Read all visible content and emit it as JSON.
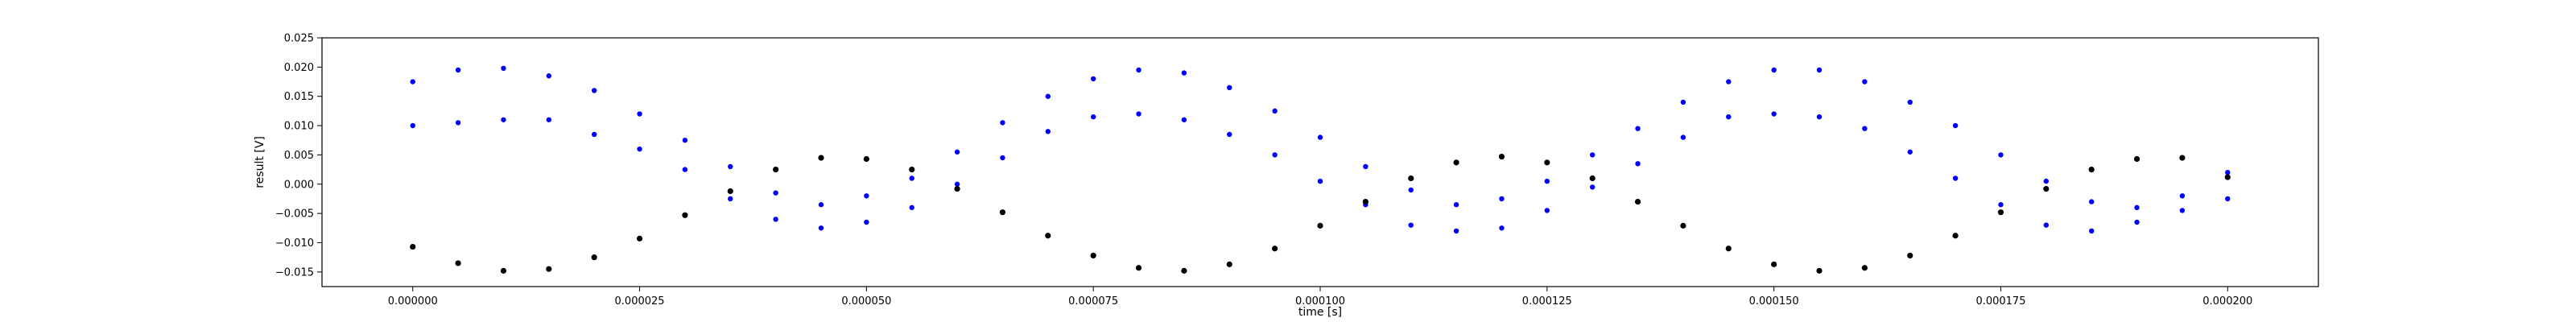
{
  "chart_data": {
    "type": "scatter",
    "title": "",
    "xlabel": "time [s]",
    "ylabel": "result [V]",
    "xlim": [
      -1e-05,
      0.00021
    ],
    "ylim": [
      -0.0175,
      0.025
    ],
    "grid": false,
    "legend": "none",
    "x_ticks": [
      0.0,
      2.5e-05,
      5e-05,
      7.5e-05,
      0.0001,
      0.000125,
      0.00015,
      0.000175,
      0.0002
    ],
    "x_tick_labels": [
      "0.000000",
      "0.000025",
      "0.000050",
      "0.000075",
      "0.000100",
      "0.000125",
      "0.000150",
      "0.000175",
      "0.000200"
    ],
    "y_ticks": [
      -0.015,
      -0.01,
      -0.005,
      0.0,
      0.005,
      0.01,
      0.015,
      0.02,
      0.025
    ],
    "y_tick_labels": [
      "−0.015",
      "−0.010",
      "−0.005",
      "0.000",
      "0.005",
      "0.010",
      "0.015",
      "0.020",
      "0.025"
    ],
    "series": [
      {
        "color": "#0000ff",
        "marker": "dot",
        "x": [
          0.0,
          5e-06,
          1e-05,
          1.5e-05,
          2e-05,
          2.5e-05,
          3e-05,
          3.5e-05,
          4e-05,
          4.5e-05,
          5e-05,
          5.5e-05,
          6e-05,
          6.5e-05,
          7e-05,
          7.5e-05,
          8e-05,
          8.5e-05,
          9e-05,
          9.5e-05,
          0.0001,
          0.000105,
          0.00011,
          0.000115,
          0.00012,
          0.000125,
          0.00013,
          0.000135,
          0.00014,
          0.000145,
          0.00015,
          0.000155,
          0.00016,
          0.000165,
          0.00017,
          0.000175,
          0.00018,
          0.000185,
          0.00019,
          0.000195,
          0.0002
        ],
        "y_upper": [
          0.0175,
          0.0195,
          0.0198,
          0.0185,
          0.016,
          0.012,
          0.0075,
          0.003,
          -0.0015,
          -0.0035,
          -0.002,
          0.001,
          0.0055,
          0.0105,
          0.015,
          0.018,
          0.0195,
          0.019,
          0.0165,
          0.0125,
          0.008,
          0.003,
          -0.001,
          -0.0035,
          -0.0025,
          0.0005,
          0.005,
          0.0095,
          0.014,
          0.0175,
          0.0195,
          0.0195,
          0.0175,
          0.014,
          0.01,
          0.005,
          0.0005,
          -0.003,
          -0.004,
          -0.002,
          0.002
        ],
        "y_lower": [
          0.01,
          0.0105,
          0.011,
          0.011,
          0.0085,
          0.006,
          0.0025,
          -0.0025,
          -0.006,
          -0.0075,
          -0.0065,
          -0.004,
          0.0,
          0.0045,
          0.009,
          0.0115,
          0.012,
          0.011,
          0.0085,
          0.005,
          0.0005,
          -0.0035,
          -0.007,
          -0.008,
          -0.0075,
          -0.0045,
          -0.0005,
          0.0035,
          0.008,
          0.0115,
          0.012,
          0.0115,
          0.0095,
          0.0055,
          0.001,
          -0.0035,
          -0.007,
          -0.008,
          -0.0065,
          -0.0045,
          -0.0025
        ]
      },
      {
        "color": "#000000",
        "marker": "dot",
        "x": [
          0.0,
          5e-06,
          1e-05,
          1.5e-05,
          2e-05,
          2.5e-05,
          3e-05,
          3.5e-05,
          4e-05,
          4.5e-05,
          5e-05,
          5.5e-05,
          6e-05,
          6.5e-05,
          7e-05,
          7.5e-05,
          8e-05,
          8.5e-05,
          9e-05,
          9.5e-05,
          0.0001,
          0.000105,
          0.00011,
          0.000115,
          0.00012,
          0.000125,
          0.00013,
          0.000135,
          0.00014,
          0.000145,
          0.00015,
          0.000155,
          0.00016,
          0.000165,
          0.00017,
          0.000175,
          0.00018,
          0.000185,
          0.00019,
          0.000195,
          0.0002
        ],
        "y": [
          -0.0107,
          -0.0135,
          -0.0148,
          -0.0145,
          -0.0125,
          -0.0093,
          -0.0053,
          -0.0012,
          0.0025,
          0.0045,
          0.0043,
          0.0025,
          -0.0008,
          -0.0048,
          -0.0088,
          -0.0122,
          -0.0143,
          -0.0148,
          -0.0137,
          -0.011,
          -0.0071,
          -0.003,
          0.001,
          0.0037,
          0.0047,
          0.0037,
          0.001,
          -0.003,
          -0.0071,
          -0.011,
          -0.0137,
          -0.0148,
          -0.0143,
          -0.0122,
          -0.0088,
          -0.0048,
          -0.0008,
          0.0025,
          0.0043,
          0.0045,
          0.0012
        ]
      }
    ]
  }
}
